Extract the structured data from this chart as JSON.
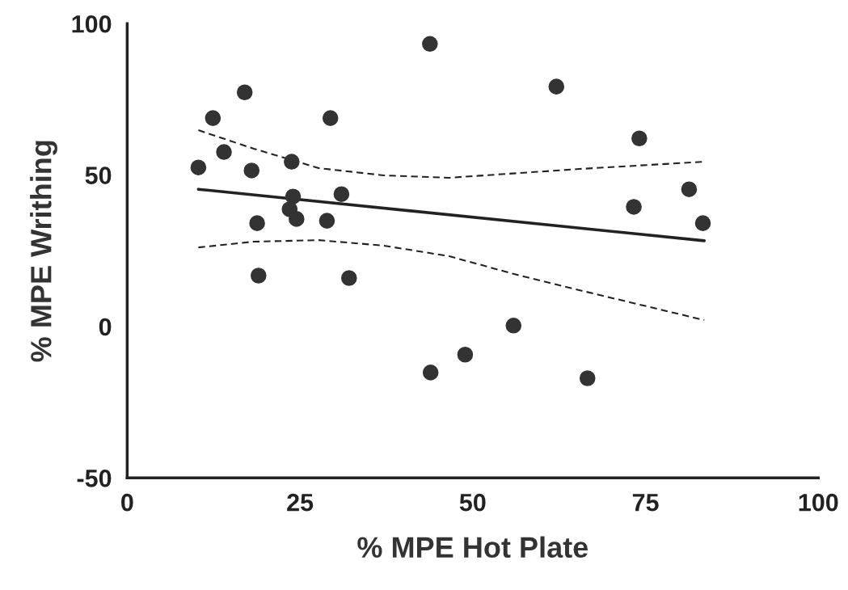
{
  "chart_data": {
    "type": "scatter",
    "xlabel": "% MPE Hot Plate",
    "ylabel": "% MPE Writhing",
    "xlim": [
      0,
      100
    ],
    "ylim": [
      -50,
      100
    ],
    "xticks": [
      0,
      25,
      50,
      75,
      100
    ],
    "yticks": [
      -50,
      0,
      50,
      100
    ],
    "grid": false,
    "legend": false,
    "series": [
      {
        "color": "#333333",
        "marker": "circle",
        "x": [
          10.3,
          12.4,
          14.0,
          17.0,
          18.0,
          18.8,
          19.0,
          23.8,
          24.0,
          23.5,
          24.5,
          29.4,
          28.9,
          31.0,
          32.1,
          43.8,
          43.9,
          48.9,
          55.9,
          62.1,
          66.6,
          74.1,
          73.3,
          81.3,
          83.3
        ],
        "values": [
          52.5,
          68.8,
          57.6,
          77.3,
          51.5,
          34.1,
          16.8,
          54.4,
          42.9,
          38.7,
          35.5,
          68.8,
          34.9,
          43.7,
          16.0,
          93.3,
          -15.2,
          -9.3,
          0.3,
          79.2,
          -17.1,
          62.1,
          39.5,
          45.3,
          34.1
        ]
      },
      {
        "type": "line",
        "color": "#222222",
        "line_style": "solid",
        "x": [
          10.3,
          83.5
        ],
        "values": [
          45.3,
          28.3
        ]
      },
      {
        "type": "line",
        "color": "#222222",
        "line_style": "dashed",
        "x": [
          10.3,
          18.3,
          27.7,
          37.1,
          46.6,
          65.4,
          83.5
        ],
        "values": [
          64.8,
          58.7,
          52.3,
          49.9,
          49.1,
          52.0,
          54.4
        ]
      },
      {
        "type": "line",
        "color": "#222222",
        "line_style": "dashed",
        "x": [
          10.3,
          18.3,
          27.7,
          37.1,
          46.6,
          56.0,
          65.4,
          83.5
        ],
        "values": [
          26.1,
          28.0,
          28.5,
          26.7,
          23.2,
          17.3,
          12.0,
          2.1
        ]
      }
    ]
  }
}
